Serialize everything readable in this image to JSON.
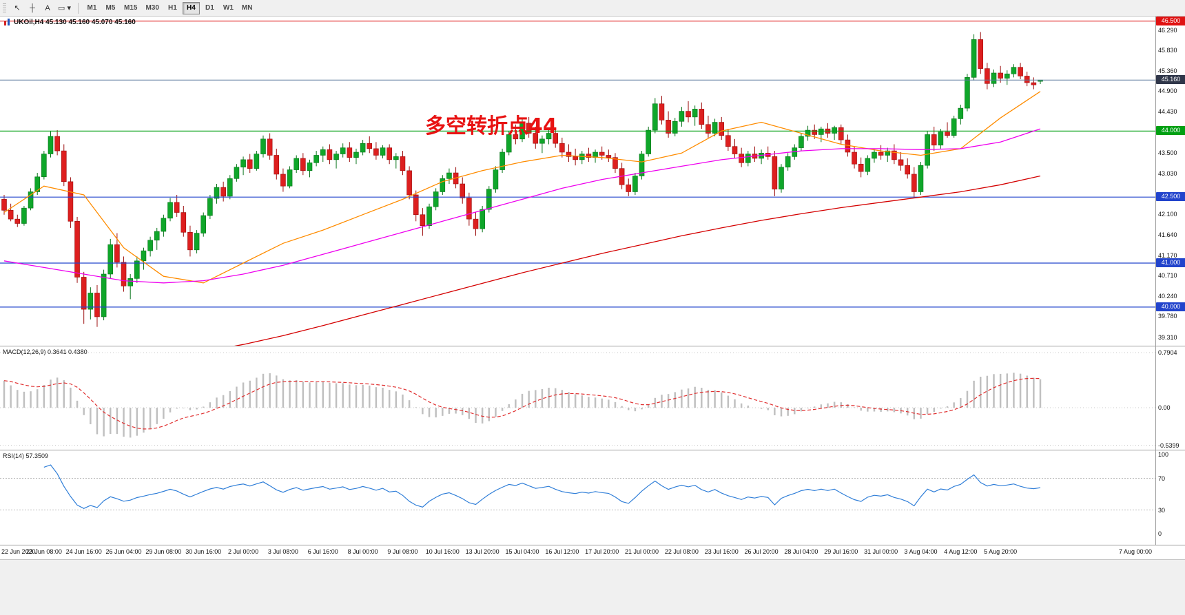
{
  "toolbar": {
    "tools": [
      {
        "name": "cursor-tool-icon",
        "glyph": "↖"
      },
      {
        "name": "crosshair-tool-icon",
        "glyph": "┼"
      },
      {
        "name": "text-tool-icon",
        "glyph": "A"
      },
      {
        "name": "shapes-tool-icon",
        "glyph": "▭ ▾"
      }
    ],
    "timeframes": [
      "M1",
      "M5",
      "M15",
      "M30",
      "H1",
      "H4",
      "D1",
      "W1",
      "MN"
    ],
    "active_timeframe": "H4"
  },
  "chart_data": {
    "type": "candlestick",
    "symbol": "UKOil",
    "timeframe": "H4",
    "symbol_line": "UKOil,H4  45.130 45.160 45.070 45.160",
    "ohlc_display": {
      "open": "45.130",
      "high": "45.160",
      "low": "45.070",
      "close": "45.160"
    },
    "annotation": {
      "text": "多空转折点44",
      "color": "#e81212"
    },
    "style": {
      "up_color": "#0fa62a",
      "up_border": "#067318",
      "down_color": "#dd1f1f",
      "down_border": "#9c0d0d",
      "grid": "off"
    },
    "price_axis": {
      "ticks": [
        "46.290",
        "45.830",
        "45.360",
        "44.900",
        "44.430",
        "43.500",
        "43.030",
        "42.100",
        "41.640",
        "41.170",
        "40.710",
        "40.240",
        "39.780",
        "39.310"
      ]
    },
    "current_price": {
      "label": "45.160",
      "value": 45.16,
      "line_color": "#5c7a9e",
      "badge_color": "#30374a"
    },
    "levels": [
      {
        "label": "46.500",
        "price": 46.5,
        "color": "#e01212"
      },
      {
        "label": "44.000",
        "price": 44.0,
        "color": "#00a013"
      },
      {
        "label": "42.500",
        "price": 42.5,
        "color": "#2244cc"
      },
      {
        "label": "41.000",
        "price": 41.0,
        "color": "#2244cc"
      },
      {
        "label": "40.000",
        "price": 40.0,
        "color": "#2244cc"
      }
    ],
    "x_labels": [
      "22 Jun 2020",
      "23 Jun 08:00",
      "24 Jun 16:00",
      "26 Jun 04:00",
      "29 Jun 08:00",
      "30 Jun 16:00",
      "2 Jul 00:00",
      "3 Jul 08:00",
      "6 Jul 16:00",
      "8 Jul 00:00",
      "9 Jul 08:00",
      "10 Jul 16:00",
      "13 Jul 20:00",
      "15 Jul 04:00",
      "16 Jul 12:00",
      "17 Jul 20:00",
      "21 Jul 00:00",
      "22 Jul 08:00",
      "23 Jul 16:00",
      "26 Jul 20:00",
      "28 Jul 04:00",
      "29 Jul 16:00",
      "31 Jul 00:00",
      "3 Aug 04:00",
      "4 Aug 12:00",
      "5 Aug 20:00",
      "7 Aug 00:00"
    ],
    "candles_per_label": 6,
    "candles": [
      [
        42.45,
        42.55,
        42.1,
        42.2
      ],
      [
        42.2,
        42.35,
        41.95,
        42.0
      ],
      [
        42.0,
        42.1,
        41.82,
        41.9
      ],
      [
        41.9,
        42.3,
        41.85,
        42.25
      ],
      [
        42.25,
        42.7,
        42.2,
        42.62
      ],
      [
        42.62,
        43.05,
        42.55,
        42.96
      ],
      [
        42.96,
        43.55,
        42.9,
        43.48
      ],
      [
        43.48,
        44.0,
        43.4,
        43.88
      ],
      [
        43.88,
        44.02,
        43.45,
        43.55
      ],
      [
        43.55,
        43.7,
        42.75,
        42.85
      ],
      [
        42.85,
        42.95,
        41.8,
        41.95
      ],
      [
        41.95,
        42.05,
        40.55,
        40.68
      ],
      [
        40.68,
        40.8,
        39.62,
        39.95
      ],
      [
        39.95,
        40.45,
        39.72,
        40.32
      ],
      [
        40.32,
        40.5,
        39.55,
        39.78
      ],
      [
        39.78,
        40.85,
        39.7,
        40.75
      ],
      [
        40.75,
        41.55,
        40.65,
        41.42
      ],
      [
        41.42,
        41.68,
        40.9,
        41.02
      ],
      [
        41.02,
        41.15,
        40.35,
        40.48
      ],
      [
        40.48,
        40.75,
        40.18,
        40.65
      ],
      [
        40.65,
        41.15,
        40.55,
        41.05
      ],
      [
        41.05,
        41.35,
        40.85,
        41.28
      ],
      [
        41.28,
        41.6,
        41.15,
        41.52
      ],
      [
        41.52,
        41.8,
        41.3,
        41.72
      ],
      [
        41.72,
        42.1,
        41.6,
        42.02
      ],
      [
        42.02,
        42.48,
        41.95,
        42.38
      ],
      [
        42.38,
        42.55,
        42.05,
        42.15
      ],
      [
        42.15,
        42.3,
        41.6,
        41.7
      ],
      [
        41.7,
        41.85,
        41.15,
        41.3
      ],
      [
        41.3,
        41.75,
        41.22,
        41.68
      ],
      [
        41.68,
        42.15,
        41.6,
        42.08
      ],
      [
        42.08,
        42.55,
        42.0,
        42.47
      ],
      [
        42.47,
        42.8,
        42.35,
        42.72
      ],
      [
        42.72,
        42.85,
        42.4,
        42.52
      ],
      [
        42.52,
        43.0,
        42.45,
        42.92
      ],
      [
        42.92,
        43.25,
        42.85,
        43.18
      ],
      [
        43.18,
        43.42,
        43.0,
        43.35
      ],
      [
        43.35,
        43.48,
        43.05,
        43.15
      ],
      [
        43.15,
        43.55,
        43.1,
        43.48
      ],
      [
        43.48,
        43.9,
        43.4,
        43.82
      ],
      [
        43.82,
        43.95,
        43.35,
        43.45
      ],
      [
        43.45,
        43.6,
        42.9,
        43.02
      ],
      [
        43.02,
        43.15,
        42.62,
        42.75
      ],
      [
        42.75,
        43.2,
        42.7,
        43.12
      ],
      [
        43.12,
        43.45,
        43.05,
        43.38
      ],
      [
        43.38,
        43.5,
        43.0,
        43.1
      ],
      [
        43.1,
        43.35,
        42.95,
        43.28
      ],
      [
        43.28,
        43.55,
        43.2,
        43.45
      ],
      [
        43.45,
        43.65,
        43.3,
        43.58
      ],
      [
        43.58,
        43.7,
        43.25,
        43.35
      ],
      [
        43.35,
        43.55,
        43.15,
        43.48
      ],
      [
        43.48,
        43.72,
        43.4,
        43.62
      ],
      [
        43.62,
        43.75,
        43.3,
        43.4
      ],
      [
        43.4,
        43.6,
        43.25,
        43.52
      ],
      [
        43.52,
        43.8,
        43.45,
        43.72
      ],
      [
        43.72,
        43.88,
        43.5,
        43.6
      ],
      [
        43.6,
        43.75,
        43.35,
        43.45
      ],
      [
        43.45,
        43.68,
        43.38,
        43.62
      ],
      [
        43.62,
        43.7,
        43.25,
        43.35
      ],
      [
        43.35,
        43.5,
        43.15,
        43.42
      ],
      [
        43.42,
        43.55,
        43.0,
        43.1
      ],
      [
        43.1,
        43.2,
        42.45,
        42.55
      ],
      [
        42.55,
        42.65,
        41.95,
        42.1
      ],
      [
        42.1,
        42.25,
        41.62,
        41.85
      ],
      [
        41.85,
        42.35,
        41.78,
        42.28
      ],
      [
        42.28,
        42.7,
        42.2,
        42.62
      ],
      [
        42.62,
        43.0,
        42.55,
        42.92
      ],
      [
        42.92,
        43.15,
        42.8,
        43.05
      ],
      [
        43.05,
        43.18,
        42.7,
        42.8
      ],
      [
        42.8,
        42.95,
        42.35,
        42.48
      ],
      [
        42.48,
        42.6,
        41.85,
        42.0
      ],
      [
        42.0,
        42.15,
        41.62,
        41.78
      ],
      [
        41.78,
        42.3,
        41.7,
        42.22
      ],
      [
        42.22,
        42.75,
        42.15,
        42.68
      ],
      [
        42.68,
        43.2,
        42.6,
        43.12
      ],
      [
        43.12,
        43.6,
        43.05,
        43.52
      ],
      [
        43.52,
        44.0,
        43.45,
        43.92
      ],
      [
        43.92,
        44.15,
        43.7,
        43.82
      ],
      [
        43.82,
        44.28,
        43.75,
        44.18
      ],
      [
        44.18,
        44.32,
        43.85,
        43.95
      ],
      [
        43.95,
        44.1,
        43.6,
        43.72
      ],
      [
        43.72,
        43.9,
        43.5,
        43.82
      ],
      [
        43.82,
        44.05,
        43.7,
        43.95
      ],
      [
        43.95,
        44.08,
        43.62,
        43.72
      ],
      [
        43.72,
        43.85,
        43.4,
        43.52
      ],
      [
        43.52,
        43.7,
        43.3,
        43.42
      ],
      [
        43.42,
        43.6,
        43.22,
        43.35
      ],
      [
        43.35,
        43.55,
        43.25,
        43.48
      ],
      [
        43.48,
        43.62,
        43.3,
        43.4
      ],
      [
        43.4,
        43.58,
        43.28,
        43.52
      ],
      [
        43.52,
        43.65,
        43.35,
        43.45
      ],
      [
        43.45,
        43.58,
        43.3,
        43.4
      ],
      [
        43.4,
        43.5,
        43.05,
        43.15
      ],
      [
        43.15,
        43.28,
        42.68,
        42.78
      ],
      [
        42.78,
        42.92,
        42.52,
        42.62
      ],
      [
        42.62,
        43.05,
        42.55,
        42.98
      ],
      [
        42.98,
        43.55,
        42.9,
        43.48
      ],
      [
        43.48,
        44.1,
        43.42,
        44.02
      ],
      [
        44.02,
        44.75,
        43.95,
        44.62
      ],
      [
        44.62,
        44.8,
        44.15,
        44.25
      ],
      [
        44.25,
        44.45,
        43.85,
        43.95
      ],
      [
        43.95,
        44.3,
        43.88,
        44.22
      ],
      [
        44.22,
        44.55,
        44.1,
        44.45
      ],
      [
        44.45,
        44.68,
        44.2,
        44.32
      ],
      [
        44.32,
        44.58,
        44.12,
        44.5
      ],
      [
        44.5,
        44.65,
        44.05,
        44.15
      ],
      [
        44.15,
        44.35,
        43.85,
        43.95
      ],
      [
        43.95,
        44.28,
        43.88,
        44.2
      ],
      [
        44.2,
        44.32,
        43.8,
        43.9
      ],
      [
        43.9,
        44.05,
        43.55,
        43.65
      ],
      [
        43.65,
        43.82,
        43.38,
        43.48
      ],
      [
        43.48,
        43.62,
        43.18,
        43.28
      ],
      [
        43.28,
        43.55,
        43.2,
        43.48
      ],
      [
        43.48,
        43.65,
        43.3,
        43.38
      ],
      [
        43.38,
        43.58,
        43.25,
        43.5
      ],
      [
        43.5,
        43.65,
        43.35,
        43.42
      ],
      [
        43.42,
        43.55,
        42.52,
        42.68
      ],
      [
        42.68,
        43.25,
        42.6,
        43.18
      ],
      [
        43.18,
        43.5,
        43.1,
        43.42
      ],
      [
        43.42,
        43.7,
        43.35,
        43.62
      ],
      [
        43.62,
        43.95,
        43.55,
        43.88
      ],
      [
        43.88,
        44.12,
        43.78,
        44.02
      ],
      [
        44.02,
        44.15,
        43.82,
        43.92
      ],
      [
        43.92,
        44.1,
        43.75,
        44.05
      ],
      [
        44.05,
        44.18,
        43.85,
        43.95
      ],
      [
        43.95,
        44.12,
        43.8,
        44.08
      ],
      [
        44.08,
        44.15,
        43.7,
        43.8
      ],
      [
        43.8,
        43.92,
        43.42,
        43.52
      ],
      [
        43.52,
        43.65,
        43.15,
        43.25
      ],
      [
        43.25,
        43.4,
        42.95,
        43.08
      ],
      [
        43.08,
        43.45,
        43.0,
        43.38
      ],
      [
        43.38,
        43.6,
        43.28,
        43.52
      ],
      [
        43.52,
        43.68,
        43.35,
        43.45
      ],
      [
        43.45,
        43.62,
        43.3,
        43.55
      ],
      [
        43.55,
        43.7,
        43.25,
        43.35
      ],
      [
        43.35,
        43.52,
        43.1,
        43.22
      ],
      [
        43.22,
        43.38,
        42.92,
        43.02
      ],
      [
        43.02,
        43.18,
        42.48,
        42.62
      ],
      [
        42.62,
        43.3,
        42.55,
        43.22
      ],
      [
        43.22,
        44.0,
        43.15,
        43.92
      ],
      [
        43.92,
        44.1,
        43.55,
        43.68
      ],
      [
        43.68,
        44.05,
        43.6,
        43.98
      ],
      [
        43.98,
        44.2,
        43.85,
        43.9
      ],
      [
        43.9,
        44.35,
        43.85,
        44.28
      ],
      [
        44.28,
        44.6,
        44.15,
        44.52
      ],
      [
        44.52,
        45.3,
        44.45,
        45.22
      ],
      [
        45.22,
        46.2,
        45.15,
        46.08
      ],
      [
        46.08,
        46.25,
        45.3,
        45.42
      ],
      [
        45.42,
        45.55,
        44.95,
        45.08
      ],
      [
        45.08,
        45.4,
        45.0,
        45.32
      ],
      [
        45.32,
        45.48,
        45.1,
        45.2
      ],
      [
        45.2,
        45.38,
        45.05,
        45.3
      ],
      [
        45.3,
        45.52,
        45.22,
        45.45
      ],
      [
        45.45,
        45.55,
        45.18,
        45.25
      ],
      [
        45.25,
        45.35,
        45.02,
        45.1
      ],
      [
        45.1,
        45.22,
        44.95,
        45.05
      ],
      [
        45.13,
        45.16,
        45.07,
        45.16
      ]
    ],
    "overlays": [
      {
        "name": "ma-fast",
        "color": "#ff8c00",
        "values": [
          42.15,
          42.75,
          42.55,
          41.35,
          40.7,
          40.55,
          41.0,
          41.45,
          41.75,
          42.1,
          42.45,
          42.85,
          43.1,
          43.3,
          43.45,
          43.4,
          43.3,
          43.5,
          44.0,
          44.2,
          43.95,
          43.7,
          43.55,
          43.45,
          43.6,
          44.3,
          44.9
        ]
      },
      {
        "name": "ma-mid",
        "color": "#ee00ee",
        "values": [
          41.05,
          40.9,
          40.75,
          40.6,
          40.55,
          40.6,
          40.75,
          40.95,
          41.2,
          41.45,
          41.7,
          41.95,
          42.2,
          42.45,
          42.7,
          42.9,
          43.05,
          43.2,
          43.35,
          43.45,
          43.55,
          43.6,
          43.6,
          43.58,
          43.6,
          43.75,
          44.05
        ]
      },
      {
        "name": "ma-slow",
        "color": "#d40000",
        "values": [
          38.3,
          38.42,
          38.55,
          38.68,
          38.82,
          38.98,
          39.15,
          39.35,
          39.58,
          39.82,
          40.06,
          40.3,
          40.54,
          40.78,
          41.0,
          41.22,
          41.42,
          41.62,
          41.8,
          41.97,
          42.12,
          42.26,
          42.38,
          42.5,
          42.62,
          42.78,
          42.98
        ]
      }
    ],
    "indicators": [
      {
        "id": "macd",
        "label": "MACD(12,26,9) 0.3641 0.4380",
        "params": [
          12,
          26,
          9
        ],
        "value_main": "0.3641",
        "value_signal": "0.4380",
        "scale": [
          "0.7904",
          "0.00",
          "-0.5399"
        ],
        "histogram_color": "#c0c0c0",
        "signal_color": "#e03030"
      },
      {
        "id": "rsi",
        "label": "RSI(14) 57.3509",
        "period": 14,
        "value": "57.3509",
        "scale": [
          "100",
          "70",
          "30",
          "0"
        ],
        "levels": [
          70,
          30
        ],
        "line_color": "#2f7ed8"
      }
    ]
  }
}
